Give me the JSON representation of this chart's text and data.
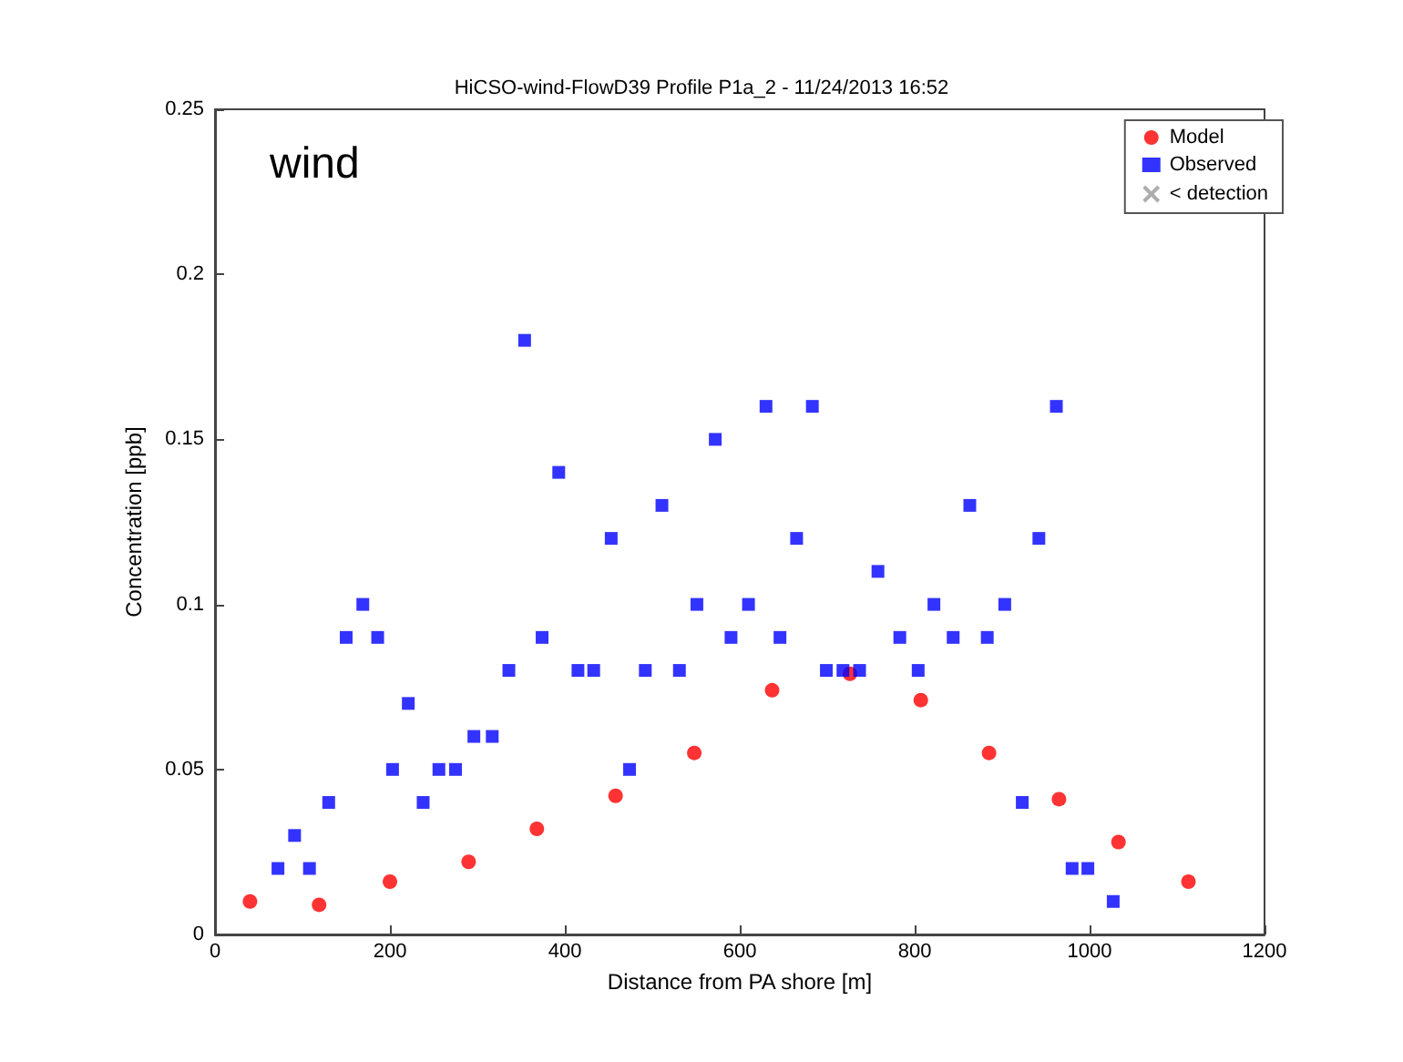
{
  "chart_data": {
    "type": "scatter",
    "title": "HiCSO-wind-FlowD39 Profile P1a_2 - 11/24/2013 16:52",
    "xlabel": "Distance from PA shore [m]",
    "ylabel": "Concentration [ppb]",
    "annotations": [
      "wind"
    ],
    "xlim": [
      0,
      1200
    ],
    "xticks": [
      0,
      200,
      400,
      600,
      800,
      1000,
      1200
    ],
    "ylim": [
      0,
      0.25
    ],
    "yticks": [
      0,
      0.05,
      0.1,
      0.15,
      0.2,
      0.25
    ],
    "grid": false,
    "legend": "top right",
    "series": [
      {
        "name": "Model",
        "color": "#ff0000",
        "marker": "circle",
        "x": [
          40,
          119,
          200,
          290,
          368,
          458,
          548,
          637,
          726,
          807,
          885,
          965,
          1033,
          1113
        ],
        "values": [
          0.01,
          0.009,
          0.016,
          0.022,
          0.032,
          0.042,
          0.055,
          0.074,
          0.079,
          0.071,
          0.055,
          0.041,
          0.028,
          0.016
        ]
      },
      {
        "name": "Observed",
        "color": "#0000ff",
        "marker": "square",
        "x": [
          72,
          91,
          108,
          130,
          150,
          169,
          186,
          203,
          221,
          238,
          256,
          275,
          296,
          317,
          336,
          354,
          374,
          393,
          415,
          433,
          453,
          474,
          492,
          511,
          531,
          551,
          572,
          590,
          610,
          630,
          646,
          665,
          683,
          699,
          718,
          737,
          758,
          783,
          804,
          822,
          844,
          863,
          883,
          903,
          923,
          942,
          962,
          980,
          998,
          1027
        ],
        "values": [
          0.02,
          0.03,
          0.02,
          0.04,
          0.09,
          0.1,
          0.09,
          0.05,
          0.07,
          0.04,
          0.05,
          0.05,
          0.06,
          0.06,
          0.08,
          0.18,
          0.09,
          0.14,
          0.08,
          0.08,
          0.12,
          0.05,
          0.08,
          0.13,
          0.08,
          0.1,
          0.15,
          0.09,
          0.1,
          0.16,
          0.09,
          0.12,
          0.16,
          0.08,
          0.08,
          0.08,
          0.11,
          0.09,
          0.08,
          0.1,
          0.09,
          0.13,
          0.09,
          0.1,
          0.04,
          0.12,
          0.16,
          0.02,
          0.02,
          0.01
        ]
      },
      {
        "name": "< detection",
        "color": "#999999",
        "marker": "cross"
      }
    ]
  }
}
